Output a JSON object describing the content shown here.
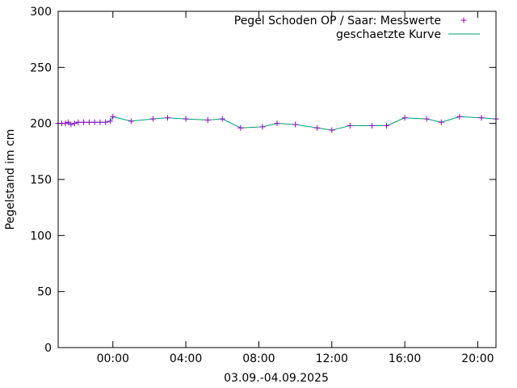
{
  "chart_data": {
    "type": "line",
    "xlabel": "03.09.-04.09.2025",
    "ylabel": "Pegelstand im cm",
    "ylim": [
      0,
      300
    ],
    "xlim_hours": [
      -3,
      21
    ],
    "yticks": [
      "0",
      "50",
      "100",
      "150",
      "200",
      "250",
      "300"
    ],
    "ytick_values": [
      0,
      50,
      100,
      150,
      200,
      250,
      300
    ],
    "xticks": [
      "00:00",
      "04:00",
      "08:00",
      "12:00",
      "16:00",
      "20:00"
    ],
    "xtick_values": [
      0,
      4,
      8,
      12,
      16,
      20
    ],
    "grid": false,
    "legend_placement": "top-right",
    "series": [
      {
        "name": "Pegel Schoden OP / Saar: Messwerte",
        "style": "points",
        "marker": "+",
        "color": "#9400d3",
        "points": [
          [
            -3.0,
            200
          ],
          [
            -2.8,
            200
          ],
          [
            -2.6,
            200
          ],
          [
            -2.45,
            201
          ],
          [
            -2.3,
            199
          ],
          [
            -2.1,
            200
          ],
          [
            -1.9,
            201
          ],
          [
            -1.6,
            201
          ],
          [
            -1.3,
            201
          ],
          [
            -1.0,
            201
          ],
          [
            -0.7,
            201
          ],
          [
            -0.4,
            201
          ],
          [
            -0.15,
            202
          ],
          [
            0.0,
            206
          ],
          [
            1.0,
            202
          ],
          [
            2.2,
            204
          ],
          [
            3.0,
            205
          ],
          [
            4.0,
            204
          ],
          [
            5.2,
            203
          ],
          [
            6.0,
            204
          ],
          [
            7.0,
            196
          ],
          [
            8.2,
            197
          ],
          [
            9.0,
            200
          ],
          [
            10.0,
            199
          ],
          [
            11.2,
            196
          ],
          [
            12.0,
            194
          ],
          [
            13.0,
            198
          ],
          [
            14.2,
            198
          ],
          [
            15.0,
            198
          ],
          [
            16.0,
            205
          ],
          [
            17.2,
            204
          ],
          [
            18.0,
            201
          ],
          [
            19.0,
            206
          ],
          [
            20.2,
            205
          ],
          [
            21.0,
            204
          ]
        ]
      },
      {
        "name": "geschaetzte Kurve",
        "style": "line",
        "color": "#009e73",
        "points": [
          [
            -3.0,
            200
          ],
          [
            -2.8,
            200
          ],
          [
            -2.6,
            200
          ],
          [
            -2.45,
            201
          ],
          [
            -2.3,
            199
          ],
          [
            -2.1,
            200
          ],
          [
            -1.9,
            201
          ],
          [
            -1.6,
            201
          ],
          [
            -1.3,
            201
          ],
          [
            -1.0,
            201
          ],
          [
            -0.7,
            201
          ],
          [
            -0.4,
            201
          ],
          [
            -0.15,
            202
          ],
          [
            0.0,
            206
          ],
          [
            1.0,
            202
          ],
          [
            2.2,
            204
          ],
          [
            3.0,
            205
          ],
          [
            4.0,
            204
          ],
          [
            5.2,
            203
          ],
          [
            6.0,
            204
          ],
          [
            7.0,
            196
          ],
          [
            8.2,
            197
          ],
          [
            9.0,
            200
          ],
          [
            10.0,
            199
          ],
          [
            11.2,
            196
          ],
          [
            12.0,
            194
          ],
          [
            13.0,
            198
          ],
          [
            14.2,
            198
          ],
          [
            15.0,
            198
          ],
          [
            16.0,
            205
          ],
          [
            17.2,
            204
          ],
          [
            18.0,
            201
          ],
          [
            19.0,
            206
          ],
          [
            20.2,
            205
          ],
          [
            21.0,
            204
          ]
        ]
      }
    ]
  }
}
